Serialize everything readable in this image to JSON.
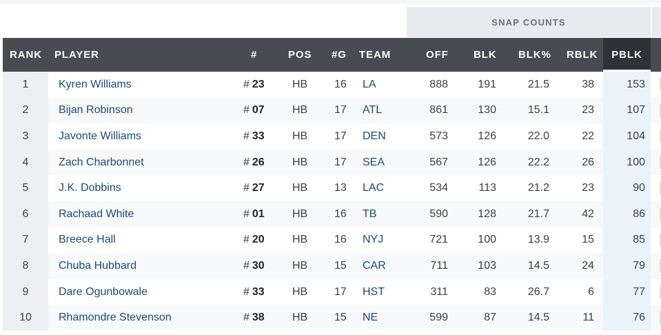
{
  "snap_counts_label": "SNAP COUNTS",
  "columns": {
    "rank": "RANK",
    "player": "PLAYER",
    "number": "#",
    "pos": "POS",
    "games": "#G",
    "team": "TEAM",
    "off": "OFF",
    "blk": "BLK",
    "blk_pct": "BLK%",
    "rblk": "RBLK",
    "pblk": "PBLK"
  },
  "number_prefix": "#",
  "sorted_column": "PBLK",
  "colors": {
    "header_bg": "#484b52",
    "sorted_header_bg": "#2f3137",
    "link": "#1b4a7a",
    "sorted_column_bg": "#eaf3fc"
  },
  "rows": [
    {
      "rank": "1",
      "player": "Kyren Williams",
      "number": "23",
      "pos": "HB",
      "games": "16",
      "team": "LA",
      "off": "888",
      "blk": "191",
      "blk_pct": "21.5",
      "rblk": "38",
      "pblk": "153"
    },
    {
      "rank": "2",
      "player": "Bijan Robinson",
      "number": "07",
      "pos": "HB",
      "games": "17",
      "team": "ATL",
      "off": "861",
      "blk": "130",
      "blk_pct": "15.1",
      "rblk": "23",
      "pblk": "107"
    },
    {
      "rank": "3",
      "player": "Javonte Williams",
      "number": "33",
      "pos": "HB",
      "games": "17",
      "team": "DEN",
      "off": "573",
      "blk": "126",
      "blk_pct": "22.0",
      "rblk": "22",
      "pblk": "104"
    },
    {
      "rank": "4",
      "player": "Zach Charbonnet",
      "number": "26",
      "pos": "HB",
      "games": "17",
      "team": "SEA",
      "off": "567",
      "blk": "126",
      "blk_pct": "22.2",
      "rblk": "26",
      "pblk": "100"
    },
    {
      "rank": "5",
      "player": "J.K. Dobbins",
      "number": "27",
      "pos": "HB",
      "games": "13",
      "team": "LAC",
      "off": "534",
      "blk": "113",
      "blk_pct": "21.2",
      "rblk": "23",
      "pblk": "90"
    },
    {
      "rank": "6",
      "player": "Rachaad White",
      "number": "01",
      "pos": "HB",
      "games": "16",
      "team": "TB",
      "off": "590",
      "blk": "128",
      "blk_pct": "21.7",
      "rblk": "42",
      "pblk": "86"
    },
    {
      "rank": "7",
      "player": "Breece Hall",
      "number": "20",
      "pos": "HB",
      "games": "16",
      "team": "NYJ",
      "off": "721",
      "blk": "100",
      "blk_pct": "13.9",
      "rblk": "15",
      "pblk": "85"
    },
    {
      "rank": "8",
      "player": "Chuba Hubbard",
      "number": "30",
      "pos": "HB",
      "games": "15",
      "team": "CAR",
      "off": "711",
      "blk": "103",
      "blk_pct": "14.5",
      "rblk": "24",
      "pblk": "79"
    },
    {
      "rank": "9",
      "player": "Dare Ogunbowale",
      "number": "33",
      "pos": "HB",
      "games": "17",
      "team": "HST",
      "off": "311",
      "blk": "83",
      "blk_pct": "26.7",
      "rblk": "6",
      "pblk": "77"
    },
    {
      "rank": "10",
      "player": "Rhamondre Stevenson",
      "number": "38",
      "pos": "HB",
      "games": "15",
      "team": "NE",
      "off": "599",
      "blk": "87",
      "blk_pct": "14.5",
      "rblk": "11",
      "pblk": "76"
    }
  ]
}
